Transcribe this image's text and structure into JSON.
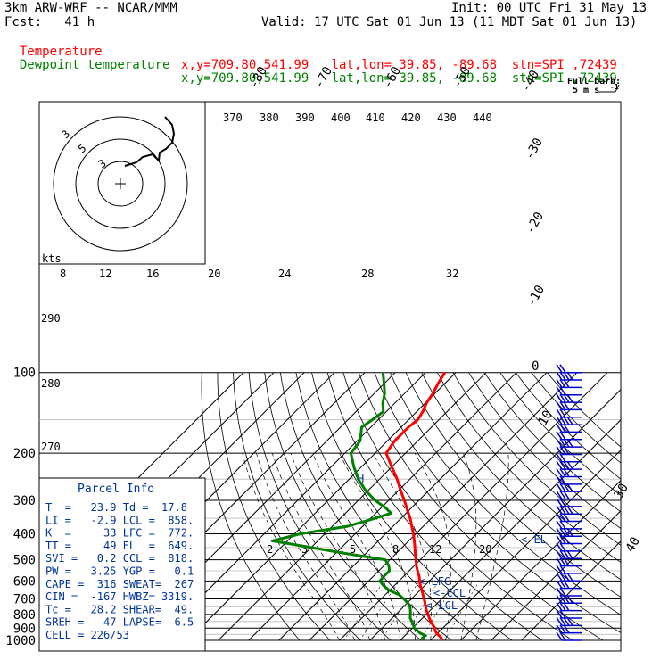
{
  "header": {
    "model": "3km ARW-WRF -- NCAR/MMM",
    "init": "Init: 00 UTC Fri 31 May 13",
    "fcst": "Fcst:   41 h",
    "valid": "Valid: 17 UTC Sat 01 Jun 13 (11 MDT Sat 01 Jun 13)",
    "temp_line": {
      "label": "Temperature",
      "info": "x,y=709.80,541.99   lat,lon= 39.85, -89.68  stn=SPI ,72439"
    },
    "dew_line": {
      "label": "Dewpoint temperature",
      "info": "x,y=709.80,541.99   lat,lon= 39.85, -89.68  stn=SPI ,72439"
    }
  },
  "colors": {
    "temperature": "#ff0000",
    "dewpoint": "#008000",
    "parcel_box": "#003399",
    "frame": "#000000",
    "wind": "#0000cc"
  },
  "wind_legend": {
    "line1": "Full barb:",
    "line2": "5 m s",
    "sup": "-1"
  },
  "hodograph": {
    "ring_labels": [
      "3",
      "5",
      "3"
    ],
    "kts_label": "kts"
  },
  "parcel_info": {
    "title": "Parcel Info",
    "rows": [
      "T  =   23.9 Td =  17.8",
      "LI =   -2.9 LCL =  858.",
      "K  =     33 LFC =  772.",
      "TT =     49 EL  =  649.",
      "SVI =   0.2 CCL =  818.",
      "PW =   3.25 YGP =   0.1",
      "CAPE =  316 SWEAT=  267",
      "CIN =  -167 HWBZ= 3319.",
      "Tc =   28.2 SHEAR=  49.",
      "SREH =   47 LAPSE=  6.5",
      "CELL = 226/53"
    ]
  },
  "chart_data": {
    "type": "line",
    "chart_kind": "skew-T log-P sounding",
    "y_axis": {
      "quantity": "pressure (hPa)",
      "scale": "log",
      "range": [
        1000,
        100
      ],
      "ticks": [
        100,
        200,
        300,
        400,
        500,
        600,
        700,
        800,
        900,
        1000
      ]
    },
    "isotherm_labels": [
      "-80",
      "-70",
      "-60",
      "-50",
      "-40",
      "-30",
      "-20",
      "-10",
      "0",
      "10",
      "30",
      "40"
    ],
    "theta_labels": [
      "370",
      "380",
      "390",
      "400",
      "410",
      "420",
      "430",
      "440"
    ],
    "mixing_ratio_labels_upper": [
      "8",
      "12",
      "16",
      "20",
      "24",
      "28",
      "32"
    ],
    "mixing_ratio_labels_lower": [
      "2",
      "3",
      "5",
      "8",
      "12",
      "20"
    ],
    "height_labels": [
      "290",
      "280",
      "270"
    ],
    "markers": {
      "lfc": "<-LFC",
      "ccl": "<-CCL",
      "lcl": "<-LCL",
      "el": "<-EL",
      "h": "H"
    },
    "series": [
      {
        "name": "Temperature",
        "points": [
          [
            1000,
            23.9
          ],
          [
            975,
            22.4
          ],
          [
            950,
            20.4
          ],
          [
            925,
            18.6
          ],
          [
            900,
            17.4
          ],
          [
            875,
            15.6
          ],
          [
            850,
            13.8
          ],
          [
            825,
            12.2
          ],
          [
            800,
            10.6
          ],
          [
            775,
            8.9
          ],
          [
            750,
            7.4
          ],
          [
            725,
            5.8
          ],
          [
            700,
            4.2
          ],
          [
            675,
            2.4
          ],
          [
            650,
            0.6
          ],
          [
            625,
            -1.4
          ],
          [
            600,
            -3.2
          ],
          [
            575,
            -5.0
          ],
          [
            550,
            -7.2
          ],
          [
            525,
            -9.4
          ],
          [
            500,
            -11.4
          ],
          [
            475,
            -13.6
          ],
          [
            450,
            -15.8
          ],
          [
            425,
            -18.2
          ],
          [
            400,
            -20.8
          ],
          [
            375,
            -23.8
          ],
          [
            350,
            -27.0
          ],
          [
            325,
            -30.8
          ],
          [
            300,
            -34.8
          ],
          [
            275,
            -39.4
          ],
          [
            250,
            -44.2
          ],
          [
            225,
            -50.0
          ],
          [
            200,
            -56.4
          ],
          [
            180,
            -57.6
          ],
          [
            160,
            -57.6
          ],
          [
            150,
            -57.0
          ],
          [
            140,
            -58.0
          ],
          [
            130,
            -59.6
          ],
          [
            120,
            -60.6
          ],
          [
            110,
            -62.2
          ],
          [
            100,
            -63.6
          ]
        ]
      },
      {
        "name": "Dewpoint temperature",
        "points": [
          [
            1000,
            17.8
          ],
          [
            980,
            16.5
          ],
          [
            960,
            16.8
          ],
          [
            940,
            14.2
          ],
          [
            920,
            12.5
          ],
          [
            900,
            10.6
          ],
          [
            875,
            9.2
          ],
          [
            850,
            7.6
          ],
          [
            825,
            5.9
          ],
          [
            800,
            4.8
          ],
          [
            775,
            3.6
          ],
          [
            750,
            2.2
          ],
          [
            725,
            0.2
          ],
          [
            700,
            -2.5
          ],
          [
            675,
            -5.5
          ],
          [
            650,
            -10.2
          ],
          [
            625,
            -13.5
          ],
          [
            600,
            -16.3
          ],
          [
            575,
            -16.5
          ],
          [
            550,
            -16.5
          ],
          [
            525,
            -18.5
          ],
          [
            500,
            -21.5
          ],
          [
            475,
            -36.0
          ],
          [
            450,
            -50.0
          ],
          [
            425,
            -65.0
          ],
          [
            400,
            -58.0
          ],
          [
            375,
            -45.0
          ],
          [
            350,
            -38.5
          ],
          [
            335,
            -35.0
          ],
          [
            320,
            -38.5
          ],
          [
            300,
            -44.5
          ],
          [
            275,
            -51.0
          ],
          [
            250,
            -57.0
          ],
          [
            225,
            -62.5
          ],
          [
            200,
            -68.0
          ],
          [
            180,
            -69.0
          ],
          [
            160,
            -73.0
          ],
          [
            150,
            -72.0
          ],
          [
            140,
            -71.0
          ],
          [
            130,
            -74.0
          ],
          [
            120,
            -76.5
          ],
          [
            110,
            -80.0
          ],
          [
            100,
            -84.0
          ]
        ]
      }
    ],
    "wind_barbs": {
      "pressure_range": [
        1000,
        100
      ],
      "count": 37
    }
  }
}
